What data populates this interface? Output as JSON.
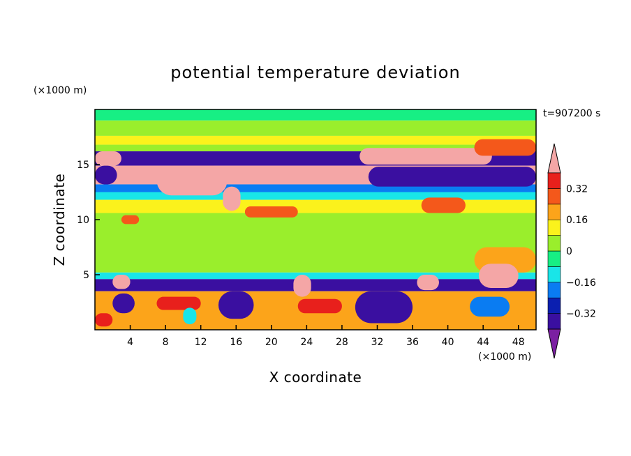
{
  "chart_data": {
    "type": "heatmap",
    "title": "potential temperature deviation",
    "xlabel": "X coordinate",
    "ylabel": "Z coordinate",
    "x_unit": "(×1000 m)",
    "y_unit": "(×1000 m)",
    "time_label": "t=907200 s",
    "xlim": [
      0,
      50
    ],
    "ylim": [
      0,
      20
    ],
    "x_ticks": [
      4,
      8,
      12,
      16,
      20,
      24,
      28,
      32,
      36,
      40,
      44,
      48
    ],
    "y_ticks": [
      5,
      10,
      15
    ],
    "grid": false,
    "legend": "right",
    "colorbar": {
      "levels": [
        -0.4,
        -0.32,
        -0.24,
        -0.16,
        -0.08,
        0,
        0.08,
        0.16,
        0.24,
        0.32,
        0.4
      ],
      "tick_values": [
        -0.32,
        -0.16,
        0,
        0.16,
        0.32
      ],
      "tick_labels": [
        "−0.32",
        "−0.16",
        "0",
        "0.16",
        "0.32"
      ],
      "colors": [
        "#7b1fa2",
        "#3a0fa0",
        "#0b1fb0",
        "#0a7cf2",
        "#19e5e8",
        "#17ef84",
        "#9aee2c",
        "#fbf21c",
        "#fca41a",
        "#f4581b",
        "#e8201c",
        "#f4a6a6"
      ]
    },
    "bands": [
      {
        "zmin": 19.0,
        "zmax": 20.0,
        "value": -0.04
      },
      {
        "zmin": 17.6,
        "zmax": 19.0,
        "value": 0.04
      },
      {
        "zmin": 16.8,
        "zmax": 17.6,
        "value": 0.12
      },
      {
        "zmin": 16.2,
        "zmax": 16.8,
        "value": 0.02
      },
      {
        "zmin": 14.9,
        "zmax": 16.2,
        "value": -0.38
      },
      {
        "zmin": 13.2,
        "zmax": 14.9,
        "value": 0.42
      },
      {
        "zmin": 12.5,
        "zmax": 13.2,
        "value": -0.2
      },
      {
        "zmin": 11.8,
        "zmax": 12.5,
        "value": -0.1
      },
      {
        "zmin": 10.6,
        "zmax": 11.8,
        "value": 0.12
      },
      {
        "zmin": 7.5,
        "zmax": 10.6,
        "value": 0.05
      },
      {
        "zmin": 5.2,
        "zmax": 7.5,
        "value": 0.0
      },
      {
        "zmin": 4.6,
        "zmax": 5.2,
        "value": -0.12
      },
      {
        "zmin": 3.5,
        "zmax": 4.6,
        "value": -0.34
      },
      {
        "zmin": 0.0,
        "zmax": 3.5,
        "value": 0.2
      }
    ],
    "cells": [
      {
        "x0": 0,
        "x1": 3,
        "z0": 14.9,
        "z1": 16.2,
        "value": 0.42
      },
      {
        "x0": 0,
        "x1": 2.5,
        "z0": 13.2,
        "z1": 14.9,
        "value": -0.38
      },
      {
        "x0": 7,
        "x1": 15,
        "z0": 12.2,
        "z1": 14.9,
        "value": 0.42
      },
      {
        "x0": 14.5,
        "x1": 16.5,
        "z0": 10.8,
        "z1": 13.0,
        "value": 0.42
      },
      {
        "x0": 17,
        "x1": 23,
        "z0": 10.2,
        "z1": 11.2,
        "value": 0.3
      },
      {
        "x0": 30,
        "x1": 45,
        "z0": 15.0,
        "z1": 16.5,
        "value": 0.42
      },
      {
        "x0": 31,
        "x1": 50,
        "z0": 13.0,
        "z1": 14.8,
        "value": -0.38
      },
      {
        "x0": 43,
        "x1": 50,
        "z0": 15.8,
        "z1": 17.3,
        "value": 0.3
      },
      {
        "x0": 37,
        "x1": 42,
        "z0": 10.6,
        "z1": 12.0,
        "value": 0.3
      },
      {
        "x0": 3,
        "x1": 5,
        "z0": 9.6,
        "z1": 10.4,
        "value": 0.3
      },
      {
        "x0": 43,
        "x1": 50,
        "z0": 5.2,
        "z1": 7.5,
        "value": 0.2
      },
      {
        "x0": 43.5,
        "x1": 48,
        "z0": 3.8,
        "z1": 6.0,
        "value": 0.42
      },
      {
        "x0": 36.5,
        "x1": 39,
        "z0": 3.6,
        "z1": 5.0,
        "value": 0.42
      },
      {
        "x0": 2,
        "x1": 4,
        "z0": 3.7,
        "z1": 5.0,
        "value": 0.42
      },
      {
        "x0": 22.5,
        "x1": 24.5,
        "z0": 3.0,
        "z1": 5.0,
        "value": 0.42
      },
      {
        "x0": 2,
        "x1": 4.5,
        "z0": 1.5,
        "z1": 3.3,
        "value": -0.34
      },
      {
        "x0": 14,
        "x1": 18,
        "z0": 1.0,
        "z1": 3.5,
        "value": -0.34
      },
      {
        "x0": 29.5,
        "x1": 36,
        "z0": 0.6,
        "z1": 3.5,
        "value": -0.34
      },
      {
        "x0": 42.5,
        "x1": 47,
        "z0": 1.2,
        "z1": 3.0,
        "value": -0.24
      },
      {
        "x0": 7,
        "x1": 12,
        "z0": 1.8,
        "z1": 3.0,
        "value": 0.32
      },
      {
        "x0": 23,
        "x1": 28,
        "z0": 1.5,
        "z1": 2.8,
        "value": 0.32
      },
      {
        "x0": 0,
        "x1": 2,
        "z0": 0.3,
        "z1": 1.5,
        "value": 0.32
      },
      {
        "x0": 10,
        "x1": 11.5,
        "z0": 0.5,
        "z1": 2.0,
        "value": -0.12
      }
    ]
  }
}
